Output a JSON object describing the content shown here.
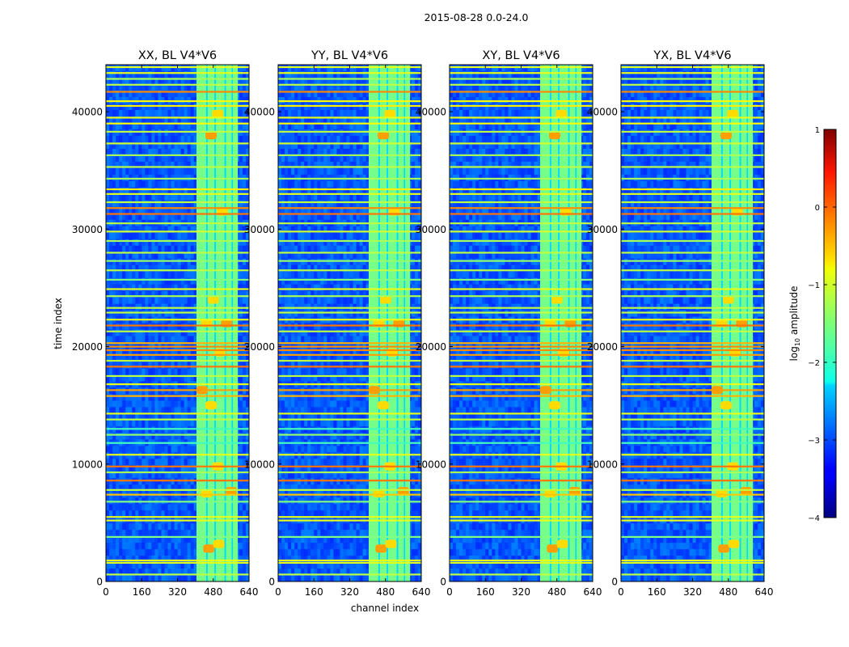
{
  "figure": {
    "suptitle": "2015-08-28 0.0-24.0"
  },
  "chart_data": {
    "type": "heatmap",
    "suptitle": "2015-08-28 0.0-24.0",
    "xlabel": "channel index",
    "ylabel": "time index",
    "xlim": [
      0,
      640
    ],
    "ylim": [
      0,
      44000
    ],
    "xticks": [
      0,
      160,
      320,
      480,
      640
    ],
    "yticks": [
      0,
      10000,
      20000,
      30000,
      40000
    ],
    "panels": [
      {
        "title": "XX, BL V4*V6"
      },
      {
        "title": "YY, BL V4*V6"
      },
      {
        "title": "XY, BL V4*V6"
      },
      {
        "title": "YX, BL V4*V6"
      }
    ],
    "colorbar": {
      "label": "log₁₀ amplitude",
      "label_main": "log",
      "label_sub": "10",
      "label_rest": " amplitude",
      "range": [
        -4,
        1
      ],
      "ticks": [
        1,
        0,
        -1,
        -2,
        -3,
        -4
      ],
      "tick_labels": [
        "1",
        "0",
        "−1",
        "−2",
        "−3",
        "−4"
      ],
      "colormap": "jet"
    },
    "rfi_channel_band": [
      405,
      590
    ],
    "flagged_time_bands": [
      {
        "t": 600,
        "level": -1.2
      },
      {
        "t": 1600,
        "level": -1.0
      },
      {
        "t": 1800,
        "level": -1.0
      },
      {
        "t": 3800,
        "level": -1.5
      },
      {
        "t": 5200,
        "level": -1.0
      },
      {
        "t": 5500,
        "level": -1.0
      },
      {
        "t": 6800,
        "level": -1.5
      },
      {
        "t": 7400,
        "level": -0.6
      },
      {
        "t": 7800,
        "level": -1.2
      },
      {
        "t": 8600,
        "level": -0.2
      },
      {
        "t": 9300,
        "level": -1.3
      },
      {
        "t": 9800,
        "level": -0.2
      },
      {
        "t": 10800,
        "level": -1.0
      },
      {
        "t": 11800,
        "level": -1.8
      },
      {
        "t": 12500,
        "level": -1.4
      },
      {
        "t": 13000,
        "level": -1.8
      },
      {
        "t": 13800,
        "level": -1.2
      },
      {
        "t": 14300,
        "level": -1.0
      },
      {
        "t": 15800,
        "level": -0.5
      },
      {
        "t": 16300,
        "level": -0.4
      },
      {
        "t": 16800,
        "level": -1.0
      },
      {
        "t": 17500,
        "level": -1.2
      },
      {
        "t": 18300,
        "level": -0.2
      },
      {
        "t": 18800,
        "level": -1.2
      },
      {
        "t": 19300,
        "level": -0.4
      },
      {
        "t": 19700,
        "level": -0.3
      },
      {
        "t": 20000,
        "level": -0.3
      },
      {
        "t": 20300,
        "level": -0.5
      },
      {
        "t": 21300,
        "level": -1.2
      },
      {
        "t": 21800,
        "level": -0.2
      },
      {
        "t": 22300,
        "level": -1.0
      },
      {
        "t": 22900,
        "level": -1.2
      },
      {
        "t": 23300,
        "level": -1.2
      },
      {
        "t": 24300,
        "level": -1.3
      },
      {
        "t": 24900,
        "level": -1.0
      },
      {
        "t": 25700,
        "level": -1.5
      },
      {
        "t": 26500,
        "level": -1.2
      },
      {
        "t": 27300,
        "level": -1.4
      },
      {
        "t": 28000,
        "level": -1.2
      },
      {
        "t": 29000,
        "level": -1.3
      },
      {
        "t": 29800,
        "level": -1.1
      },
      {
        "t": 30500,
        "level": -1.2
      },
      {
        "t": 31300,
        "level": -0.2
      },
      {
        "t": 31800,
        "level": -0.3
      },
      {
        "t": 32300,
        "level": -1.2
      },
      {
        "t": 33000,
        "level": -1.0
      },
      {
        "t": 33400,
        "level": -0.8
      },
      {
        "t": 34300,
        "level": -1.3
      },
      {
        "t": 35300,
        "level": -1.2
      },
      {
        "t": 36300,
        "level": -1.3
      },
      {
        "t": 37300,
        "level": -1.1
      },
      {
        "t": 38300,
        "level": -1.2
      },
      {
        "t": 39000,
        "level": -0.9
      },
      {
        "t": 39500,
        "level": -1.0
      },
      {
        "t": 40500,
        "level": -0.8
      },
      {
        "t": 40900,
        "level": -0.9
      },
      {
        "t": 41700,
        "level": -0.3
      },
      {
        "t": 42300,
        "level": -1.2
      },
      {
        "t": 42800,
        "level": -1.3
      },
      {
        "t": 43300,
        "level": -1.0
      },
      {
        "t": 43800,
        "level": -1.0
      }
    ]
  }
}
